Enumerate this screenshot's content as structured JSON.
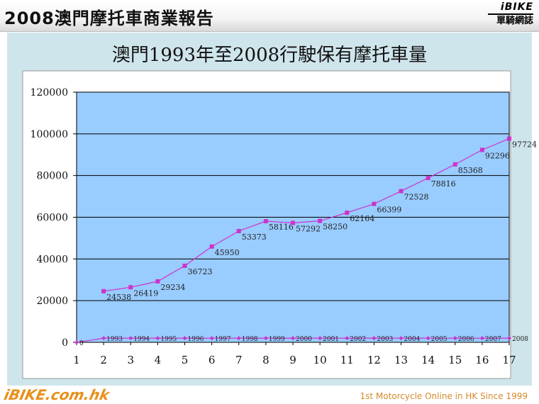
{
  "header": {
    "title": "2008澳門摩托車商業報告",
    "logo_line1": "iBIKE",
    "logo_line2": "單騎網誌"
  },
  "footer": {
    "logo_text": "iBIKE.com.hk",
    "tagline": "1st  Motorcycle Online in HK Since 1999"
  },
  "colors": {
    "panel_bg": "#cfe5ec",
    "plot_bg": "#99ccff",
    "series_total": "#cc33cc",
    "series_year": "#cc33cc",
    "header_text": "#111111",
    "footer_accent": "#e8901a"
  },
  "chart_data": {
    "type": "line",
    "title": "澳門1993年至2008行駛保有摩托車量",
    "x": [
      1,
      2,
      3,
      4,
      5,
      6,
      7,
      8,
      9,
      10,
      11,
      12,
      13,
      14,
      15,
      16,
      17
    ],
    "xlim": [
      1,
      17
    ],
    "ylim": [
      0,
      120000
    ],
    "yticks": [
      0,
      20000,
      40000,
      60000,
      80000,
      100000,
      120000
    ],
    "grid": true,
    "legend": "none",
    "series": [
      {
        "x": [
          2,
          3,
          4,
          5,
          6,
          7,
          8,
          9,
          10,
          11,
          12,
          13,
          14,
          15,
          16,
          17
        ],
        "values": [
          24538,
          26419,
          29234,
          36723,
          45950,
          53373,
          58116,
          57292,
          58250,
          62164,
          66399,
          72528,
          78816,
          85368,
          92296,
          97724
        ],
        "labels": [
          "24538",
          "26419",
          "29234",
          "36723",
          "45950",
          "53373",
          "58116",
          "57292",
          "58250",
          "62164",
          "66399",
          "72528",
          "78816",
          "85368",
          "92296",
          "97724"
        ]
      },
      {
        "x": [
          1,
          2,
          3,
          4,
          5,
          6,
          7,
          8,
          9,
          10,
          11,
          12,
          13,
          14,
          15,
          16,
          17
        ],
        "values": [
          0,
          1993,
          1994,
          1995,
          1996,
          1997,
          1998,
          1999,
          2000,
          2001,
          2002,
          2003,
          2004,
          2005,
          2006,
          2007,
          2008
        ],
        "labels": [
          "0",
          "1993",
          "1994",
          "1995",
          "1996",
          "1997",
          "1998",
          "1999",
          "2000",
          "2001",
          "2002",
          "2003",
          "2004",
          "2005",
          "2006",
          "2007",
          "2008"
        ]
      }
    ]
  }
}
